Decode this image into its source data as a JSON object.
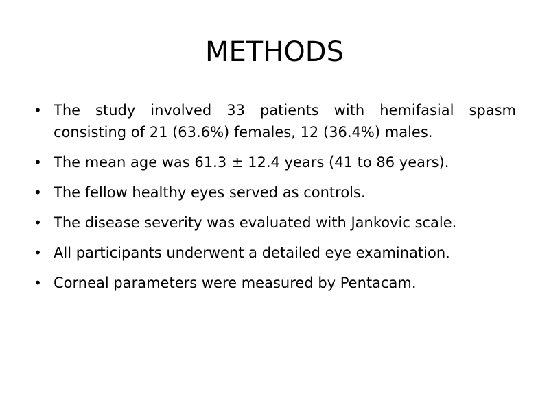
{
  "slide": {
    "title": "METHODS",
    "bullets": [
      "The study involved 33 patients with hemifasial spasm consisting of 21 (63.6%) females, 12 (36.4%) males.",
      "The mean age was 61.3 ± 12.4 years (41 to 86 years).",
      "The fellow healthy eyes served as controls.",
      "The disease severity was evaluated with Jankovic scale.",
      "All participants underwent a detailed eye examination.",
      "Corneal parameters were measured by Pentacam."
    ]
  },
  "colors": {
    "background": "#ffffff",
    "text": "#000000"
  },
  "icons": {
    "bullet": "•"
  }
}
